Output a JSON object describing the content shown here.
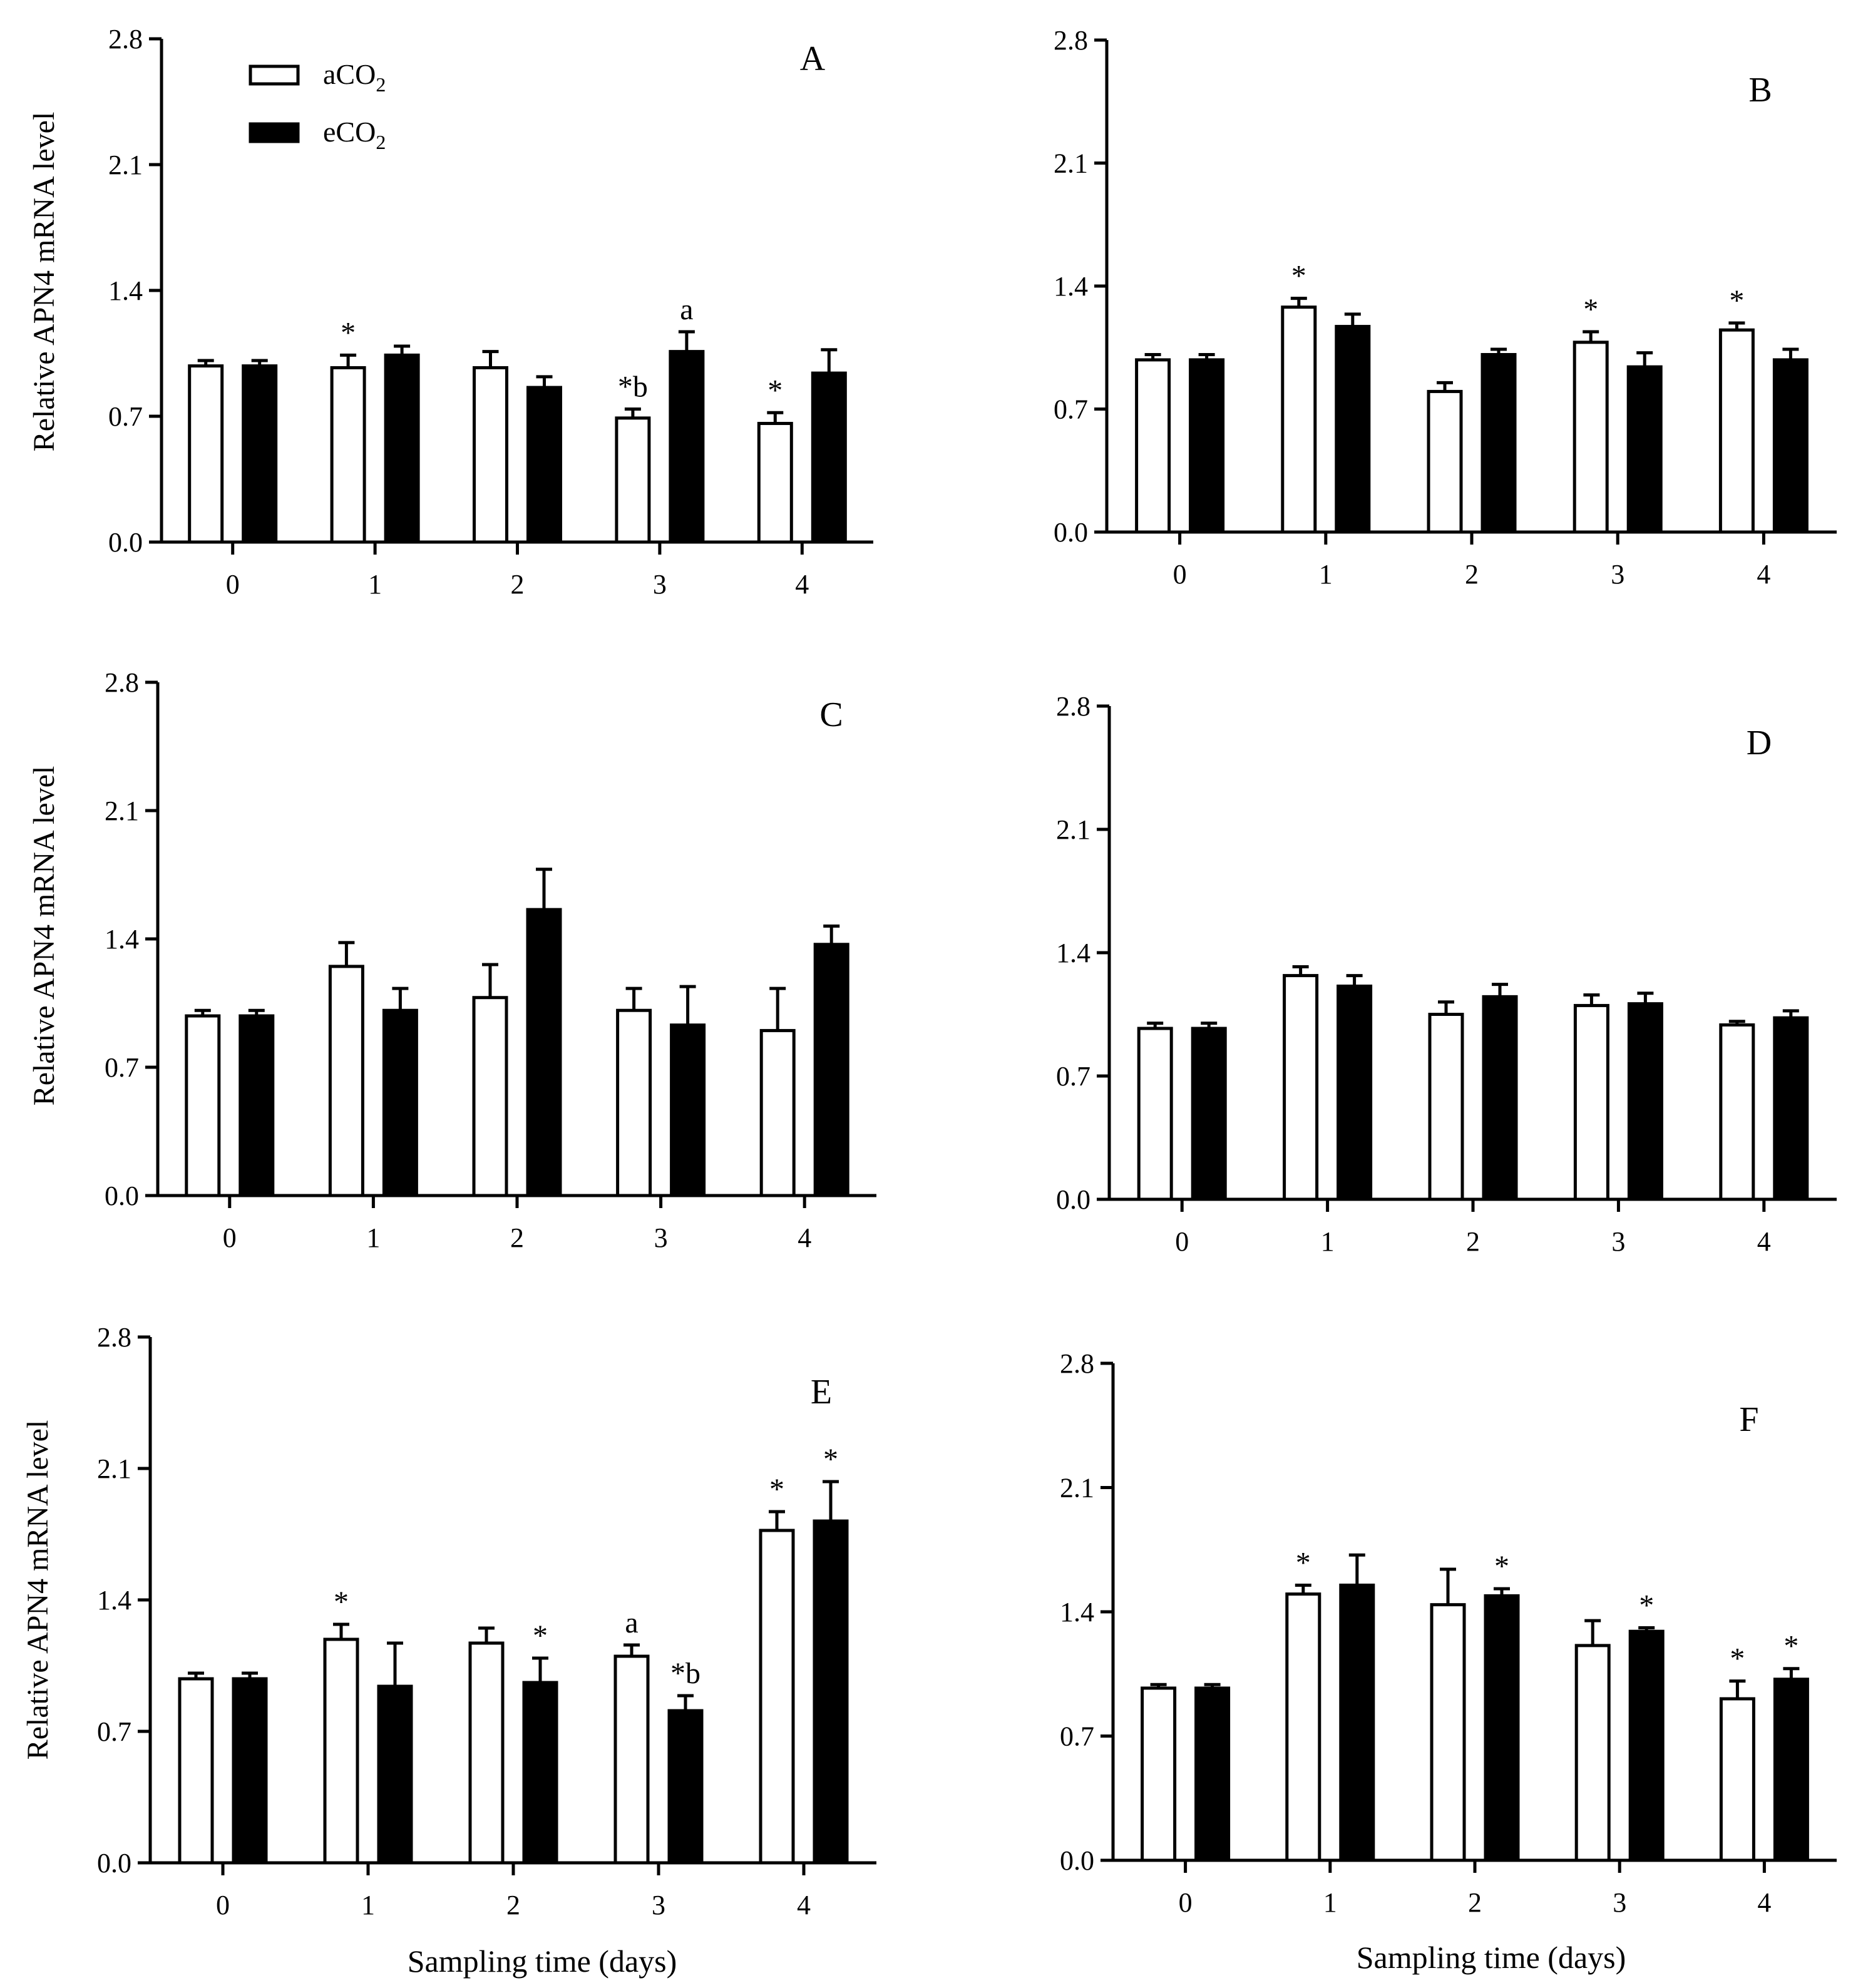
{
  "figure": {
    "ylabel": "Relative APN4 mRNA level",
    "xlabel": "Sampling time (days)",
    "legend": [
      {
        "base": "aCO",
        "sub": "2",
        "color": "#ffffff"
      },
      {
        "base": "eCO",
        "sub": "2",
        "color": "#000000"
      }
    ],
    "colors": {
      "aCO2": "#ffffff",
      "eCO2": "#000000",
      "axis": "#000000"
    }
  },
  "chart_data": [
    {
      "panel": "A",
      "type": "bar",
      "categories": [
        "0",
        "1",
        "2",
        "3",
        "4"
      ],
      "ylim": [
        0,
        2.8
      ],
      "yticks": [
        "0.0",
        "0.7",
        "1.4",
        "2.1",
        "2.8"
      ],
      "ylabel": "Relative APN4 mRNA level",
      "xlabel": "",
      "series": [
        {
          "name": "aCO2",
          "values": [
            0.98,
            0.97,
            0.97,
            0.69,
            0.66
          ],
          "errors": [
            0.03,
            0.07,
            0.09,
            0.05,
            0.06
          ],
          "annotations": [
            "",
            "*",
            "",
            "*b",
            "*"
          ]
        },
        {
          "name": "eCO2",
          "values": [
            0.98,
            1.04,
            0.86,
            1.06,
            0.94
          ],
          "errors": [
            0.03,
            0.05,
            0.06,
            0.11,
            0.13
          ],
          "annotations": [
            "",
            "",
            "",
            "a",
            ""
          ]
        }
      ]
    },
    {
      "panel": "B",
      "type": "bar",
      "categories": [
        "0",
        "1",
        "2",
        "3",
        "4"
      ],
      "ylim": [
        0,
        2.8
      ],
      "yticks": [
        "0.0",
        "0.7",
        "1.4",
        "2.1",
        "2.8"
      ],
      "ylabel": "",
      "xlabel": "",
      "series": [
        {
          "name": "aCO2",
          "values": [
            0.98,
            1.28,
            0.8,
            1.08,
            1.15
          ],
          "errors": [
            0.03,
            0.05,
            0.05,
            0.06,
            0.04
          ],
          "annotations": [
            "",
            "*",
            "",
            "*",
            "*"
          ]
        },
        {
          "name": "eCO2",
          "values": [
            0.98,
            1.17,
            1.01,
            0.94,
            0.98
          ],
          "errors": [
            0.03,
            0.07,
            0.03,
            0.08,
            0.06
          ],
          "annotations": [
            "",
            "",
            "",
            "",
            ""
          ]
        }
      ]
    },
    {
      "panel": "C",
      "type": "bar",
      "categories": [
        "0",
        "1",
        "2",
        "3",
        "4"
      ],
      "ylim": [
        0,
        2.8
      ],
      "yticks": [
        "0.0",
        "0.7",
        "1.4",
        "2.1",
        "2.8"
      ],
      "ylabel": "Relative APN4 mRNA level",
      "xlabel": "",
      "series": [
        {
          "name": "aCO2",
          "values": [
            0.98,
            1.25,
            1.08,
            1.01,
            0.9
          ],
          "errors": [
            0.03,
            0.13,
            0.18,
            0.12,
            0.23
          ],
          "annotations": [
            "",
            "",
            "",
            "",
            ""
          ]
        },
        {
          "name": "eCO2",
          "values": [
            0.98,
            1.01,
            1.56,
            0.93,
            1.37
          ],
          "errors": [
            0.03,
            0.12,
            0.22,
            0.21,
            0.1
          ],
          "annotations": [
            "",
            "",
            "",
            "",
            ""
          ]
        }
      ]
    },
    {
      "panel": "D",
      "type": "bar",
      "categories": [
        "0",
        "1",
        "2",
        "3",
        "4"
      ],
      "ylim": [
        0,
        2.8
      ],
      "yticks": [
        "0.0",
        "0.7",
        "1.4",
        "2.1",
        "2.8"
      ],
      "ylabel": "",
      "xlabel": "",
      "series": [
        {
          "name": "aCO2",
          "values": [
            0.97,
            1.27,
            1.05,
            1.1,
            0.99
          ],
          "errors": [
            0.03,
            0.05,
            0.07,
            0.06,
            0.02
          ],
          "annotations": [
            "",
            "",
            "",
            "",
            ""
          ]
        },
        {
          "name": "eCO2",
          "values": [
            0.97,
            1.21,
            1.15,
            1.11,
            1.03
          ],
          "errors": [
            0.03,
            0.06,
            0.07,
            0.06,
            0.04
          ],
          "annotations": [
            "",
            "",
            "",
            "",
            ""
          ]
        }
      ]
    },
    {
      "panel": "E",
      "type": "bar",
      "categories": [
        "0",
        "1",
        "2",
        "3",
        "4"
      ],
      "ylim": [
        0,
        2.8
      ],
      "yticks": [
        "0.0",
        "0.7",
        "1.4",
        "2.1",
        "2.8"
      ],
      "ylabel": "Relative APN4 mRNA level",
      "xlabel": "Sampling time (days)",
      "series": [
        {
          "name": "aCO2",
          "values": [
            0.98,
            1.19,
            1.17,
            1.1,
            1.77
          ],
          "errors": [
            0.03,
            0.08,
            0.08,
            0.06,
            0.1
          ],
          "annotations": [
            "",
            "*",
            "",
            "a",
            "*"
          ]
        },
        {
          "name": "eCO2",
          "values": [
            0.98,
            0.94,
            0.96,
            0.81,
            1.82
          ],
          "errors": [
            0.03,
            0.23,
            0.13,
            0.08,
            0.21
          ],
          "annotations": [
            "",
            "",
            "*",
            "*b",
            "*"
          ]
        }
      ]
    },
    {
      "panel": "F",
      "type": "bar",
      "categories": [
        "0",
        "1",
        "2",
        "3",
        "4"
      ],
      "ylim": [
        0,
        2.8
      ],
      "yticks": [
        "0.0",
        "0.7",
        "1.4",
        "2.1",
        "2.8"
      ],
      "ylabel": "",
      "xlabel": "Sampling time (days)",
      "series": [
        {
          "name": "aCO2",
          "values": [
            0.97,
            1.5,
            1.44,
            1.21,
            0.91
          ],
          "errors": [
            0.02,
            0.05,
            0.2,
            0.14,
            0.1
          ],
          "annotations": [
            "",
            "*",
            "",
            "",
            "*"
          ]
        },
        {
          "name": "eCO2",
          "values": [
            0.97,
            1.55,
            1.49,
            1.29,
            1.02
          ],
          "errors": [
            0.02,
            0.17,
            0.04,
            0.02,
            0.06
          ],
          "annotations": [
            "",
            "",
            "*",
            "*",
            "*"
          ]
        }
      ]
    }
  ]
}
